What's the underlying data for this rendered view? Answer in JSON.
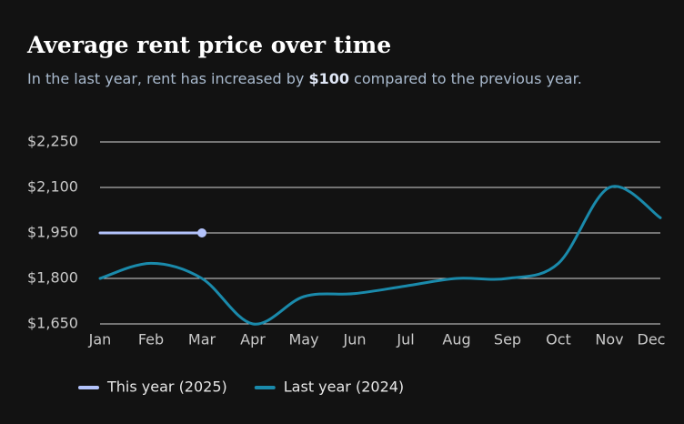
{
  "chart_data": {
    "type": "line",
    "title": "Average rent price over time",
    "subtitle": [
      "In the last year, rent has increased by ",
      "$100",
      " compared to the previous year."
    ],
    "categories": [
      "Jan",
      "Feb",
      "Mar",
      "Apr",
      "May",
      "Jun",
      "Jul",
      "Aug",
      "Sep",
      "Oct",
      "Nov",
      "Dec"
    ],
    "series": [
      {
        "name": "This year (2025)",
        "color": "#b3c3fb",
        "values": [
          1950,
          1950,
          1950,
          null,
          null,
          null,
          null,
          null,
          null,
          null,
          null,
          null
        ]
      },
      {
        "name": "Last year (2024)",
        "color": "#1a8aab",
        "values": [
          1800,
          1850,
          1800,
          1650,
          1740,
          1750,
          1775,
          1800,
          1800,
          1850,
          2100,
          2000
        ]
      }
    ],
    "ylim": [
      1650,
      2250
    ],
    "yticks": [
      {
        "value": 1650,
        "label": "$1,650"
      },
      {
        "value": 1800,
        "label": "$1,800"
      },
      {
        "value": 1950,
        "label": "$1,950"
      },
      {
        "value": 2100,
        "label": "$2,100"
      },
      {
        "value": 2250,
        "label": "$2,250"
      }
    ],
    "grid": true,
    "legend": "bottom"
  }
}
